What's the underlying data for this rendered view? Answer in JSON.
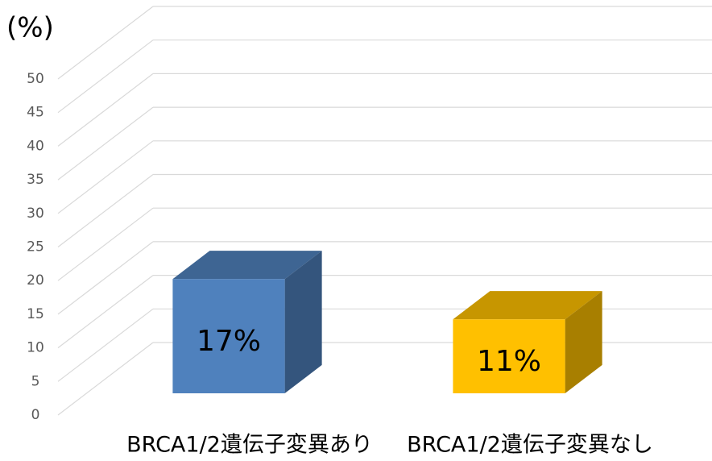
{
  "chart_data": {
    "type": "bar3d",
    "y_label": "(%)",
    "categories": [
      "BRCA1/2遺伝子変異あり",
      "BRCA1/2遺伝子変異なし"
    ],
    "values": [
      17,
      11
    ],
    "value_labels": [
      "17%",
      "11%"
    ],
    "colors": [
      "#4f81bd",
      "#ffc000"
    ],
    "ylim": [
      0,
      50
    ],
    "yticks": [
      0,
      5,
      10,
      15,
      20,
      25,
      30,
      35,
      40,
      45,
      50
    ],
    "grid": true
  }
}
